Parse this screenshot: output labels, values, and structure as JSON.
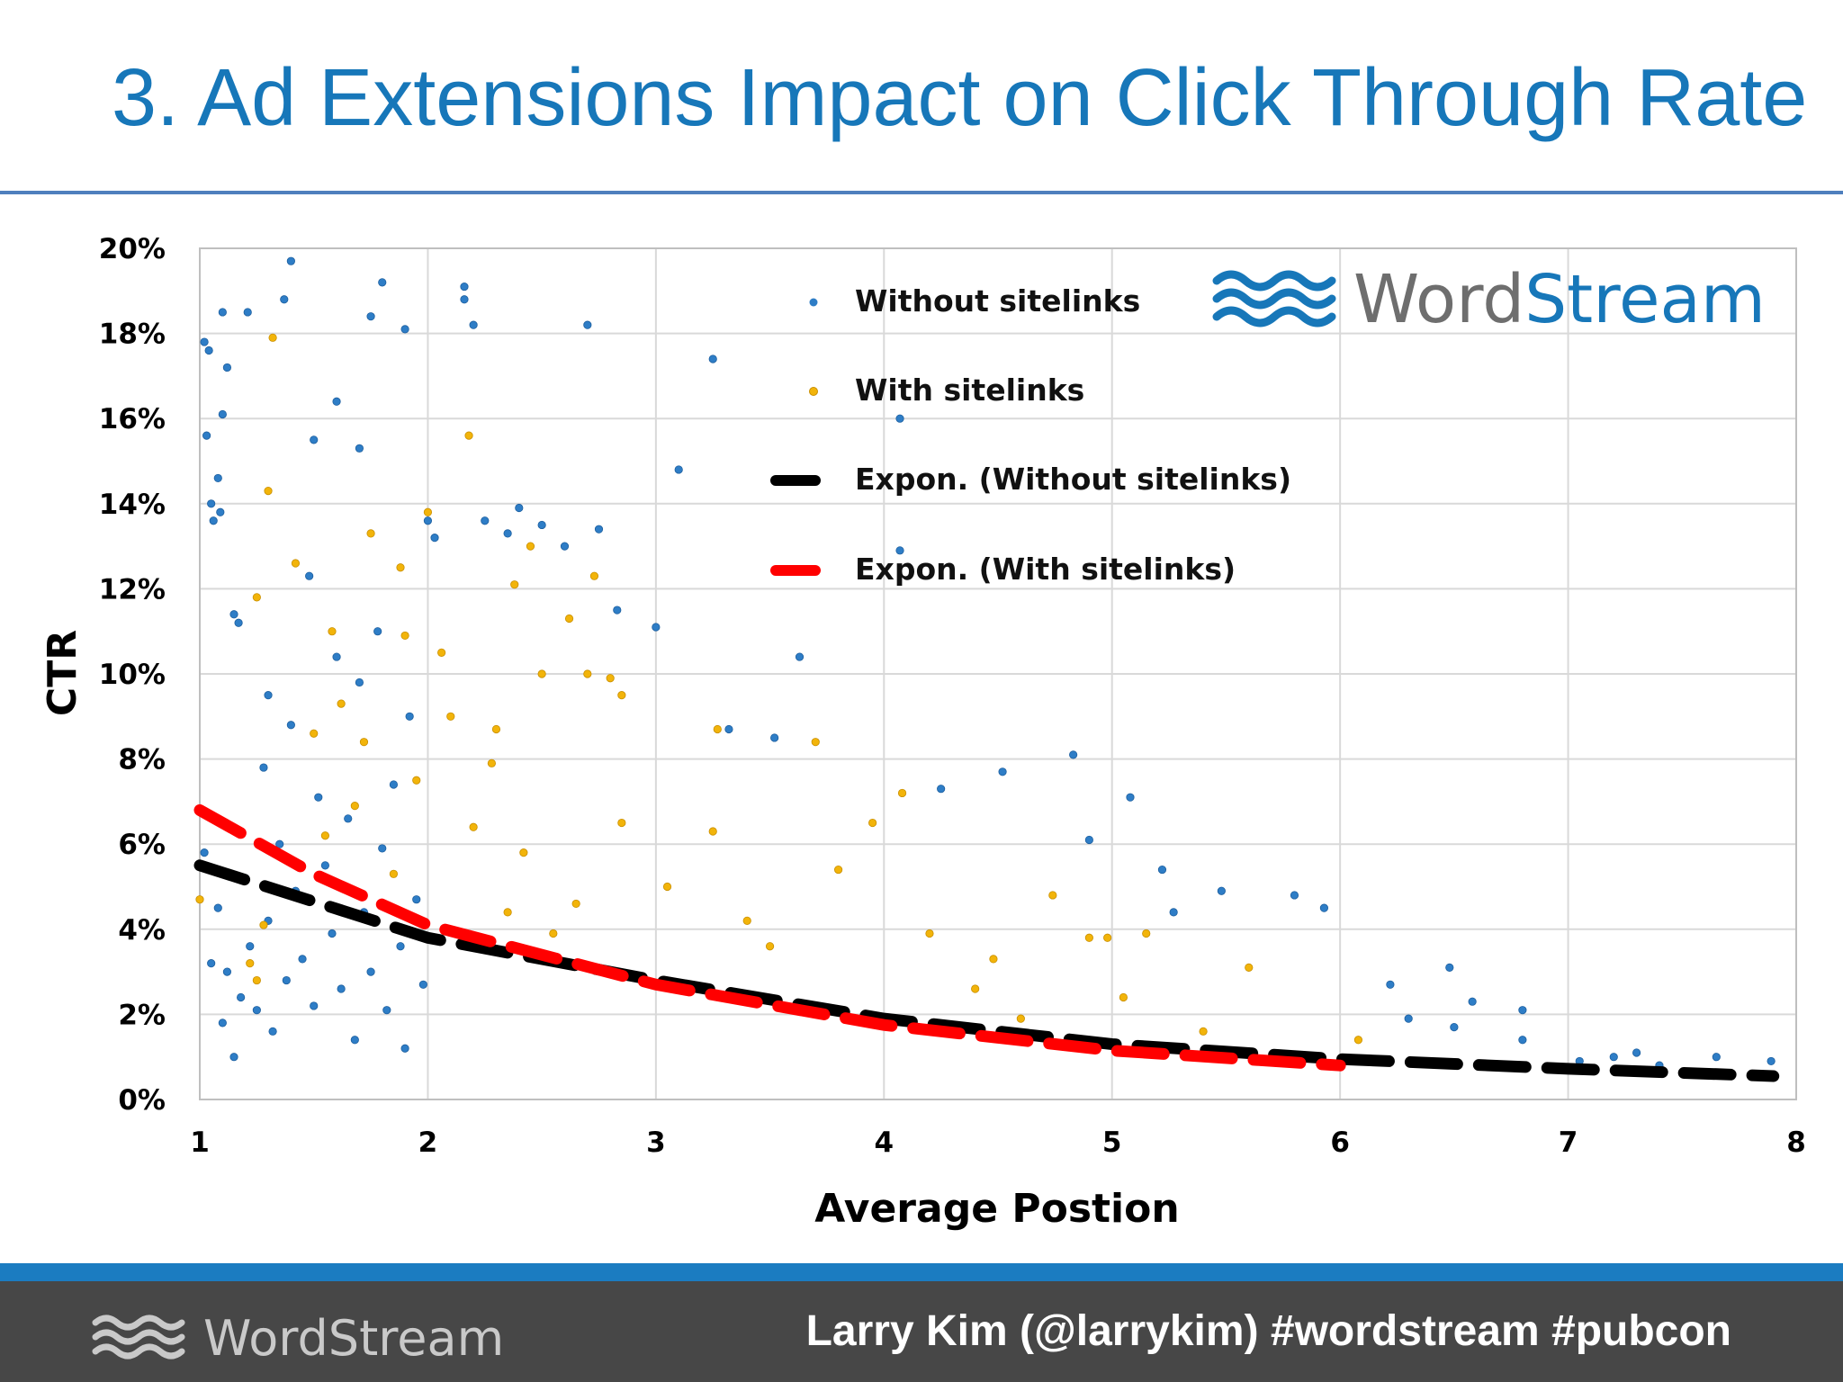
{
  "slide": {
    "title": "3. Ad Extensions Impact on Click Through Rate",
    "footer_brand": "WordStream",
    "footer_credit": "Larry Kim (@larrykim) #wordstream #pubcon"
  },
  "watermark": {
    "word": "Word",
    "stream": "Stream"
  },
  "colors": {
    "title": "#1777b9",
    "without": "#2e7dc6",
    "with": "#f2b40a",
    "trend_without": "#000000",
    "trend_with": "#ff0000",
    "footer": "#474747",
    "band": "#1b7cc1"
  },
  "chart_data": {
    "type": "scatter",
    "xlabel": "Average Postion",
    "ylabel": "CTR",
    "xlim": [
      1,
      8
    ],
    "ylim": [
      0,
      20
    ],
    "x_ticks": [
      "1",
      "2",
      "3",
      "4",
      "5",
      "6",
      "7",
      "8"
    ],
    "y_ticks": [
      "0%",
      "2%",
      "4%",
      "6%",
      "8%",
      "10%",
      "12%",
      "14%",
      "16%",
      "18%",
      "20%"
    ],
    "grid": true,
    "legend_position": "top-right",
    "series": [
      {
        "name": "Without sitelinks",
        "points": [
          [
            1.02,
            17.8
          ],
          [
            1.03,
            15.6
          ],
          [
            1.04,
            17.6
          ],
          [
            1.05,
            14.0
          ],
          [
            1.06,
            13.6
          ],
          [
            1.08,
            14.6
          ],
          [
            1.09,
            13.8
          ],
          [
            1.1,
            16.1
          ],
          [
            1.12,
            17.2
          ],
          [
            1.15,
            11.4
          ],
          [
            1.17,
            11.2
          ],
          [
            1.1,
            18.5
          ],
          [
            1.21,
            18.5
          ],
          [
            1.4,
            19.7
          ],
          [
            1.37,
            18.8
          ],
          [
            1.75,
            18.4
          ],
          [
            1.8,
            19.2
          ],
          [
            1.9,
            18.1
          ],
          [
            2.16,
            19.1
          ],
          [
            2.16,
            18.8
          ],
          [
            2.2,
            18.2
          ],
          [
            2.7,
            18.2
          ],
          [
            3.25,
            17.4
          ],
          [
            1.6,
            16.4
          ],
          [
            1.5,
            15.5
          ],
          [
            1.7,
            15.3
          ],
          [
            3.1,
            14.8
          ],
          [
            4.07,
            16.0
          ],
          [
            4.07,
            12.9
          ],
          [
            3.63,
            10.4
          ],
          [
            2.0,
            13.6
          ],
          [
            2.03,
            13.2
          ],
          [
            2.25,
            13.6
          ],
          [
            2.35,
            13.3
          ],
          [
            2.4,
            13.9
          ],
          [
            2.5,
            13.5
          ],
          [
            2.6,
            13.0
          ],
          [
            2.83,
            11.5
          ],
          [
            3.0,
            11.1
          ],
          [
            2.75,
            13.4
          ],
          [
            3.52,
            8.5
          ],
          [
            3.32,
            8.7
          ],
          [
            4.83,
            8.1
          ],
          [
            5.08,
            7.1
          ],
          [
            4.25,
            7.3
          ],
          [
            4.52,
            7.7
          ],
          [
            4.9,
            6.1
          ],
          [
            5.22,
            5.4
          ],
          [
            5.27,
            4.4
          ],
          [
            5.48,
            4.9
          ],
          [
            5.8,
            4.8
          ],
          [
            5.93,
            4.5
          ],
          [
            6.22,
            2.7
          ],
          [
            6.48,
            3.1
          ],
          [
            6.58,
            2.3
          ],
          [
            6.8,
            2.1
          ],
          [
            6.8,
            1.4
          ],
          [
            7.2,
            1.0
          ],
          [
            7.3,
            1.1
          ],
          [
            7.65,
            1.0
          ],
          [
            7.89,
            0.9
          ],
          [
            6.5,
            1.7
          ],
          [
            6.3,
            1.9
          ],
          [
            6.7,
            0.8
          ],
          [
            7.05,
            0.9
          ],
          [
            7.4,
            0.8
          ],
          [
            1.02,
            5.8
          ],
          [
            1.05,
            3.2
          ],
          [
            1.08,
            4.5
          ],
          [
            1.1,
            1.8
          ],
          [
            1.12,
            3.0
          ],
          [
            1.15,
            1.0
          ],
          [
            1.18,
            2.4
          ],
          [
            1.2,
            5.2
          ],
          [
            1.22,
            3.6
          ],
          [
            1.25,
            2.1
          ],
          [
            1.28,
            7.8
          ],
          [
            1.3,
            4.2
          ],
          [
            1.3,
            9.5
          ],
          [
            1.32,
            1.6
          ],
          [
            1.35,
            6.0
          ],
          [
            1.38,
            2.8
          ],
          [
            1.4,
            8.8
          ],
          [
            1.42,
            4.9
          ],
          [
            1.45,
            3.3
          ],
          [
            1.48,
            12.3
          ],
          [
            1.5,
            2.2
          ],
          [
            1.52,
            7.1
          ],
          [
            1.55,
            5.5
          ],
          [
            1.58,
            3.9
          ],
          [
            1.6,
            10.4
          ],
          [
            1.62,
            2.6
          ],
          [
            1.65,
            6.6
          ],
          [
            1.68,
            1.4
          ],
          [
            1.7,
            9.8
          ],
          [
            1.72,
            4.4
          ],
          [
            1.75,
            3.0
          ],
          [
            1.78,
            11.0
          ],
          [
            1.8,
            5.9
          ],
          [
            1.82,
            2.1
          ],
          [
            1.85,
            7.4
          ],
          [
            1.88,
            3.6
          ],
          [
            1.9,
            1.2
          ],
          [
            1.92,
            9.0
          ],
          [
            1.95,
            4.7
          ],
          [
            1.98,
            2.7
          ]
        ]
      },
      {
        "name": "With sitelinks",
        "points": [
          [
            1.0,
            4.7
          ],
          [
            1.25,
            11.8
          ],
          [
            1.3,
            14.3
          ],
          [
            1.32,
            17.9
          ],
          [
            1.42,
            12.6
          ],
          [
            1.5,
            8.6
          ],
          [
            1.58,
            11.0
          ],
          [
            1.68,
            6.9
          ],
          [
            1.75,
            13.3
          ],
          [
            1.88,
            12.5
          ],
          [
            1.9,
            10.9
          ],
          [
            2.0,
            13.8
          ],
          [
            2.06,
            10.5
          ],
          [
            2.18,
            15.6
          ],
          [
            2.3,
            8.7
          ],
          [
            2.38,
            12.1
          ],
          [
            2.45,
            13.0
          ],
          [
            2.5,
            10.0
          ],
          [
            2.62,
            11.3
          ],
          [
            2.7,
            10.0
          ],
          [
            2.73,
            12.3
          ],
          [
            2.8,
            9.9
          ],
          [
            2.85,
            9.5
          ],
          [
            2.85,
            6.5
          ],
          [
            3.27,
            8.7
          ],
          [
            3.7,
            8.4
          ],
          [
            4.08,
            7.2
          ],
          [
            3.95,
            6.5
          ],
          [
            4.48,
            3.3
          ],
          [
            4.74,
            4.8
          ],
          [
            4.9,
            3.8
          ],
          [
            4.98,
            3.8
          ],
          [
            5.15,
            3.9
          ],
          [
            5.6,
            3.1
          ],
          [
            6.08,
            1.4
          ],
          [
            1.22,
            3.2
          ],
          [
            1.25,
            2.8
          ],
          [
            1.28,
            4.1
          ],
          [
            1.55,
            6.2
          ],
          [
            1.62,
            9.3
          ],
          [
            1.72,
            8.4
          ],
          [
            1.85,
            5.3
          ],
          [
            1.95,
            7.5
          ],
          [
            2.1,
            9.0
          ],
          [
            2.2,
            6.4
          ],
          [
            2.28,
            7.9
          ],
          [
            2.35,
            4.4
          ],
          [
            2.42,
            5.8
          ],
          [
            2.55,
            3.9
          ],
          [
            2.65,
            4.6
          ],
          [
            3.05,
            5.0
          ],
          [
            3.25,
            6.3
          ],
          [
            3.4,
            4.2
          ],
          [
            3.5,
            3.6
          ],
          [
            3.8,
            5.4
          ],
          [
            4.2,
            3.9
          ],
          [
            4.4,
            2.6
          ],
          [
            4.6,
            1.9
          ],
          [
            5.05,
            2.4
          ],
          [
            5.4,
            1.6
          ]
        ]
      }
    ],
    "trendlines": [
      {
        "name": "Expon. (Without sitelinks)",
        "x": [
          1,
          2,
          3,
          4,
          5,
          6,
          7,
          7.9
        ],
        "y": [
          5.5,
          3.8,
          2.8,
          1.9,
          1.3,
          0.95,
          0.72,
          0.55
        ]
      },
      {
        "name": "Expon. (With sitelinks)",
        "x": [
          1,
          1.5,
          2,
          3,
          4,
          5,
          6
        ],
        "y": [
          6.8,
          5.3,
          4.1,
          2.7,
          1.75,
          1.15,
          0.8
        ]
      }
    ]
  }
}
